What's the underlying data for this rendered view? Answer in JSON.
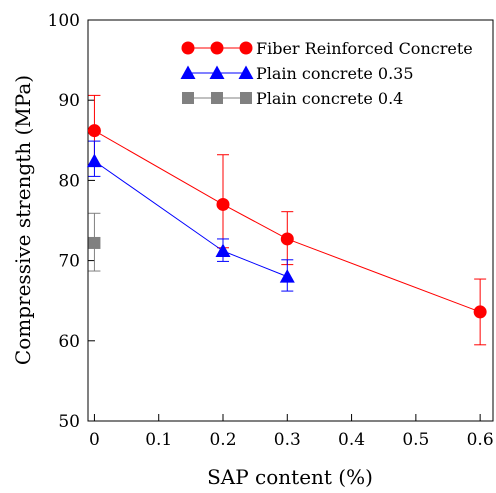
{
  "chart_data": {
    "type": "line",
    "xlabel": "SAP content (%)",
    "ylabel": "Compressive strength (MPa)",
    "xlim": [
      -0.01,
      0.62
    ],
    "ylim": [
      50,
      100
    ],
    "xticks": [
      0,
      0.1,
      0.2,
      0.3,
      0.4,
      0.5,
      0.6
    ],
    "xtick_labels": [
      "0",
      "0.1",
      "0.2",
      "0.3",
      "0.4",
      "0.5",
      "0.6"
    ],
    "yticks": [
      50,
      60,
      70,
      80,
      90,
      100
    ],
    "ytick_labels": [
      "50",
      "60",
      "70",
      "80",
      "90",
      "100"
    ],
    "grid": false,
    "legend_position": "top-right",
    "series": [
      {
        "name": "Fiber Reinforced Concrete",
        "color": "#ff0000",
        "marker": "circle",
        "x": [
          0,
          0.2,
          0.3,
          0.6
        ],
        "y": [
          86.2,
          77.0,
          72.7,
          63.6
        ],
        "error_low": [
          82.0,
          71.6,
          69.5,
          59.5
        ],
        "error_high": [
          90.6,
          83.2,
          76.1,
          67.7
        ]
      },
      {
        "name": "Plain concrete 0.35",
        "color": "#0000ff",
        "marker": "triangle",
        "x": [
          0,
          0.2,
          0.3
        ],
        "y": [
          82.4,
          71.2,
          68.0
        ],
        "error_low": [
          80.5,
          69.9,
          66.2
        ],
        "error_high": [
          84.9,
          72.7,
          70.1
        ]
      },
      {
        "name": "Plain concrete 0.4",
        "color": "#808080",
        "marker": "square",
        "x": [
          0
        ],
        "y": [
          72.2
        ],
        "error_low": [
          68.7
        ],
        "error_high": [
          75.9
        ]
      }
    ]
  }
}
